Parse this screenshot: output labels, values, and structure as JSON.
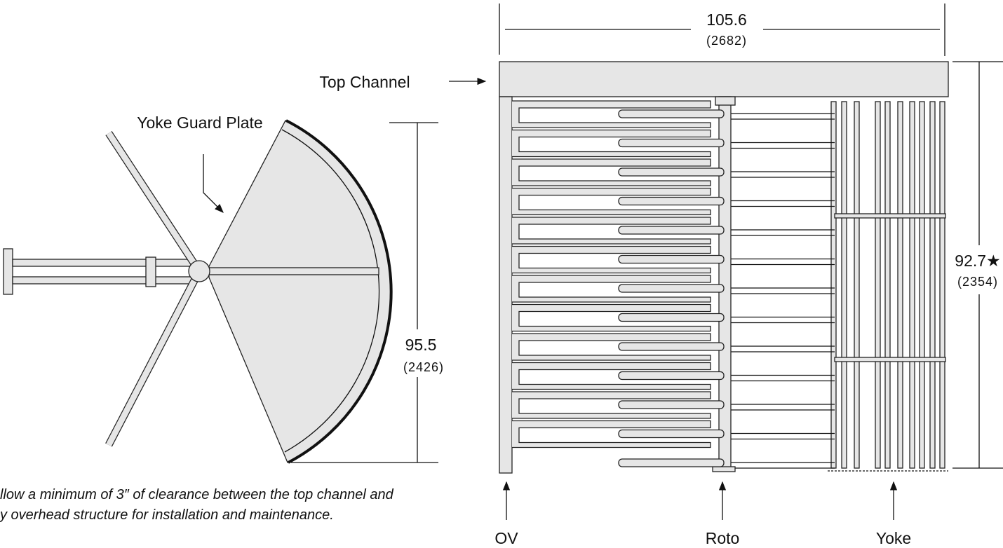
{
  "labels": {
    "top_channel": "Top Channel",
    "yoke_guard_plate": "Yoke Guard Plate",
    "ov": "OV",
    "roto": "Roto",
    "yoke": "Yoke"
  },
  "dimensions": {
    "width": {
      "inches": "105.6",
      "mm": "(2682)"
    },
    "height": {
      "inches": "92.7★",
      "mm": "(2354)"
    },
    "plan_depth": {
      "inches": "95.5",
      "mm": "(2426)"
    }
  },
  "note": [
    "llow a minimum of 3″ of clearance between the top channel and",
    "y overhead structure for installation and maintenance."
  ]
}
